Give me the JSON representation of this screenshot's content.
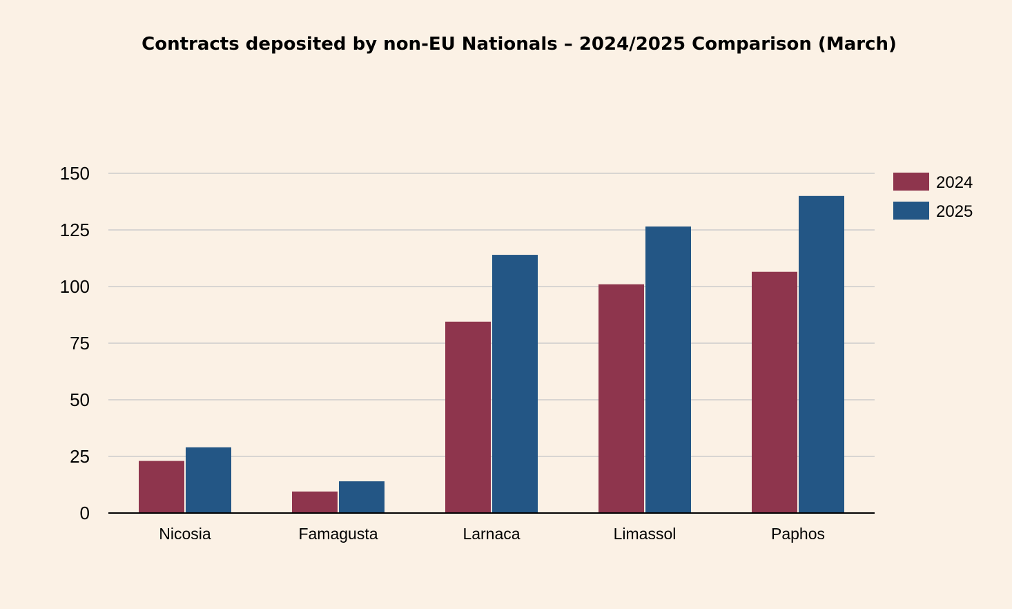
{
  "chart_data": {
    "type": "bar",
    "title": "Contracts deposited by non-EU Nationals – 2024/2025 Comparison (March)",
    "xlabel": "",
    "ylabel": "",
    "categories": [
      "Nicosia",
      "Famagusta",
      "Larnaca",
      "Limassol",
      "Paphos"
    ],
    "series": [
      {
        "name": "2024",
        "color": "#8e354d",
        "values": [
          23,
          9.5,
          84.5,
          101,
          106.5
        ]
      },
      {
        "name": "2025",
        "color": "#235685",
        "values": [
          29,
          14,
          114,
          126.5,
          140
        ]
      }
    ],
    "ylim": [
      0,
      150
    ],
    "yticks": [
      "0",
      "25",
      "50",
      "75",
      "100",
      "125",
      "150"
    ],
    "grid": true,
    "legend_position": "right"
  }
}
